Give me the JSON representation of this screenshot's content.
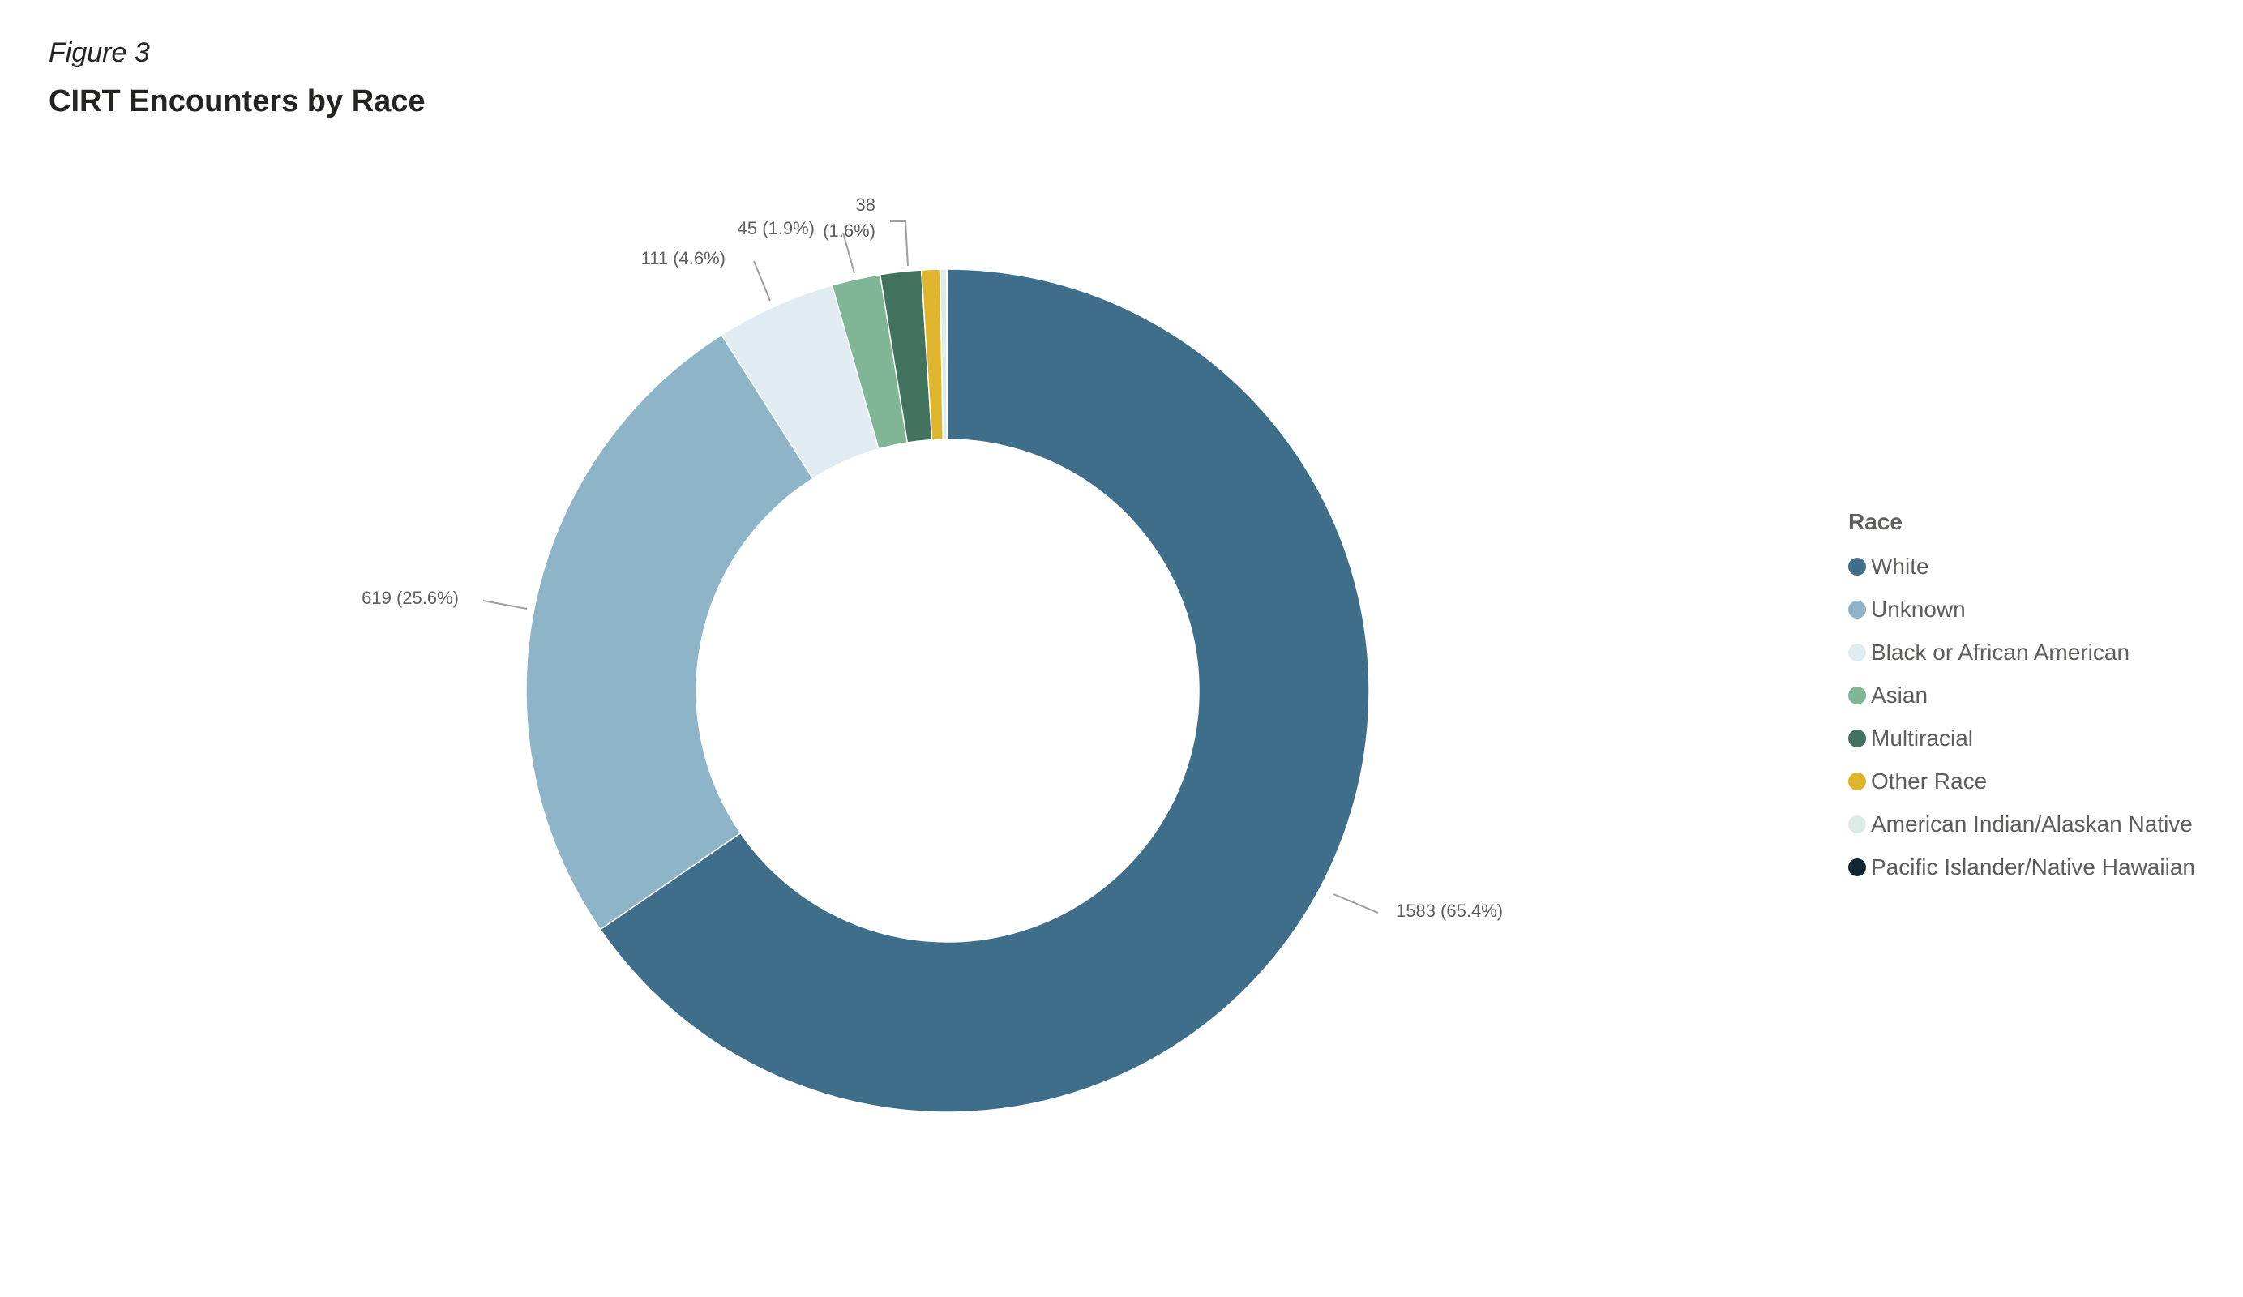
{
  "figure_label": "Figure 3",
  "chart_data": {
    "type": "donut",
    "title": "CIRT Encounters by Race",
    "legend_title": "Race",
    "legend_position": "right",
    "categories": [
      "White",
      "Unknown",
      "Black or African American",
      "Asian",
      "Multiracial",
      "Other Race",
      "American Indian/Alaskan Native",
      "Pacific Islander/Native Hawaiian"
    ],
    "values": [
      1583,
      619,
      111,
      45,
      38,
      17,
      6,
      1
    ],
    "colors": [
      "#3f6e8a",
      "#8eb5c7",
      "#e0ecf1",
      "#80b596",
      "#41735e",
      "#dfb52d",
      "#dcebe5",
      "#112633"
    ],
    "data_labels": [
      {
        "category": "White",
        "text": "1583 (65.4%)"
      },
      {
        "category": "Unknown",
        "text": "619 (25.6%)"
      },
      {
        "category": "Black or African American",
        "text": "111 (4.6%)"
      },
      {
        "category": "Asian",
        "text": "45 (1.9%)"
      },
      {
        "category": "Multiracial",
        "text": "38",
        "text2": "(1.6%)"
      }
    ]
  }
}
